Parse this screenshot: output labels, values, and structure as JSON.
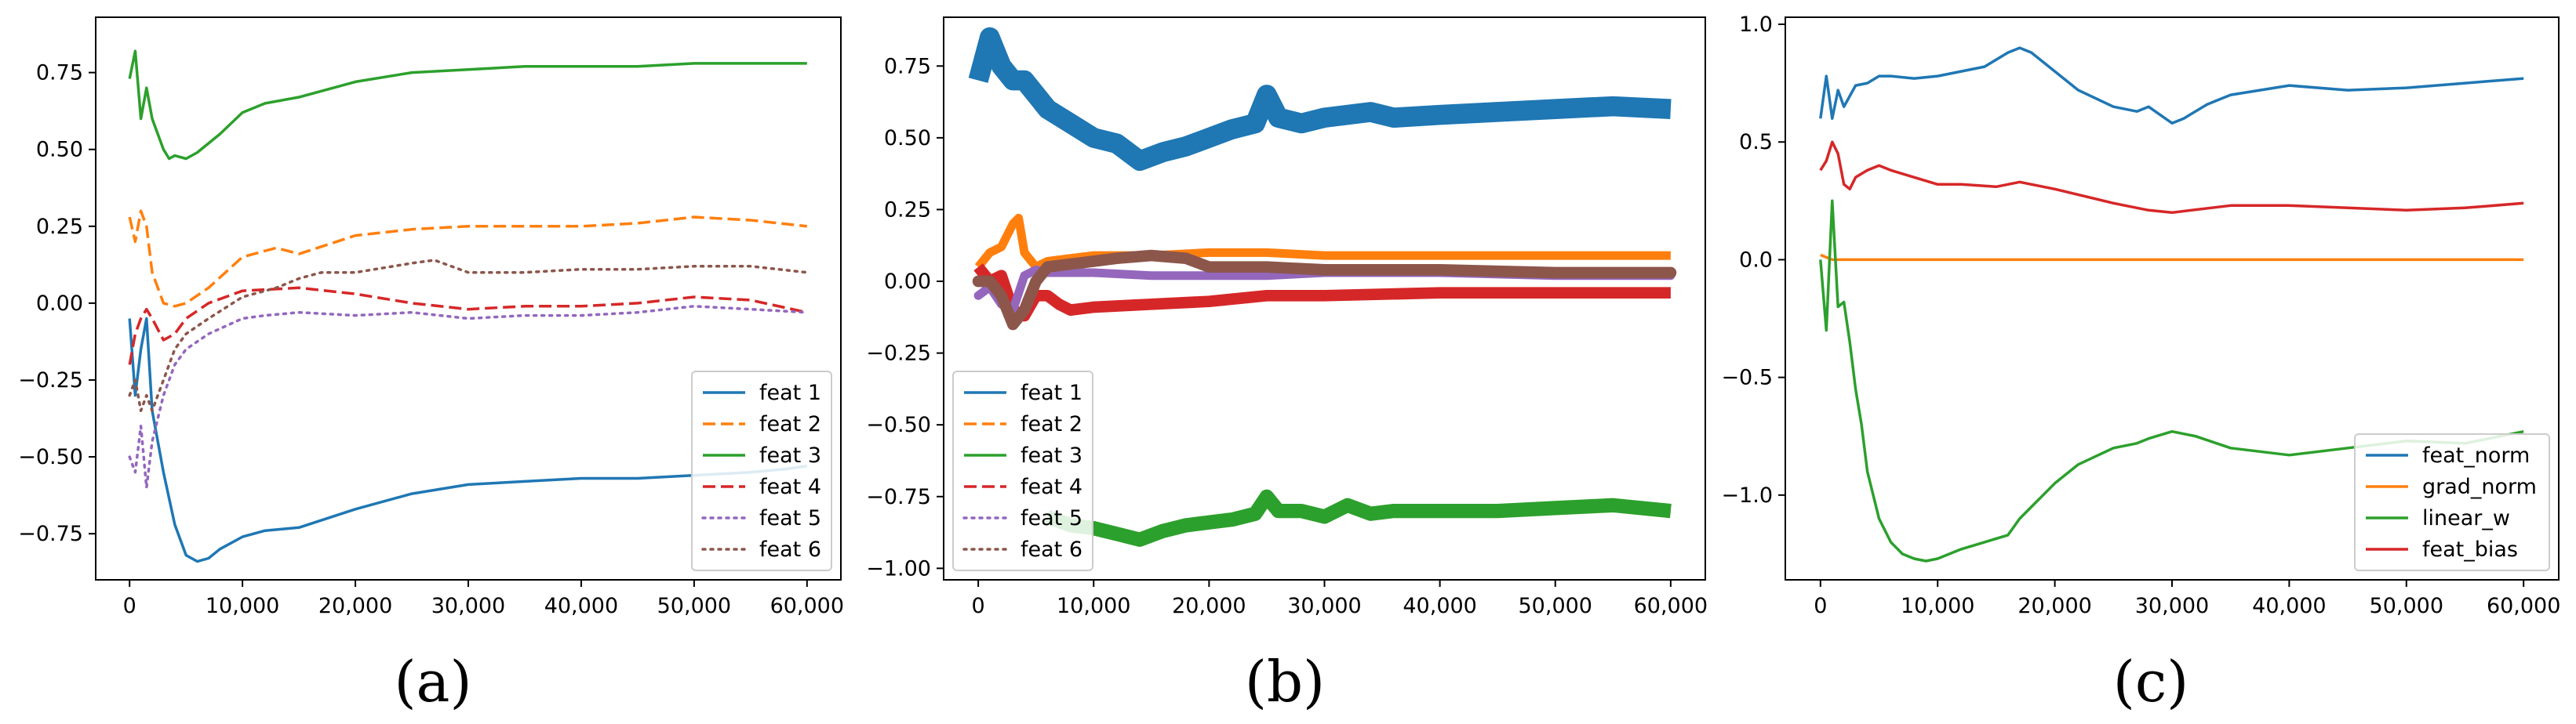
{
  "chart_data": [
    {
      "type": "line",
      "panel_label": "(a)",
      "xlabel": "",
      "ylabel": "",
      "xlim": [
        -3000,
        63000
      ],
      "ylim": [
        -0.9,
        0.93
      ],
      "xticks": [
        0,
        10000,
        20000,
        30000,
        40000,
        50000,
        60000
      ],
      "xtick_labels": [
        "0",
        "10,000",
        "20,000",
        "30,000",
        "40,000",
        "50,000",
        "60,000"
      ],
      "yticks": [
        -0.75,
        -0.5,
        -0.25,
        0.0,
        0.25,
        0.5,
        0.75
      ],
      "ytick_labels": [
        "−0.75",
        "−0.50",
        "−0.25",
        "0.00",
        "0.25",
        "0.50",
        "0.75"
      ],
      "legend_position": "bottom-right",
      "series": [
        {
          "name": "feat 1",
          "color": "#1f77b4",
          "dash": "solid",
          "x": [
            0,
            500,
            1000,
            1500,
            2000,
            3000,
            4000,
            5000,
            6000,
            7000,
            8000,
            10000,
            12000,
            15000,
            20000,
            25000,
            30000,
            35000,
            40000,
            45000,
            50000,
            55000,
            58000,
            60000
          ],
          "y": [
            -0.05,
            -0.3,
            -0.15,
            -0.05,
            -0.35,
            -0.55,
            -0.72,
            -0.82,
            -0.84,
            -0.83,
            -0.8,
            -0.76,
            -0.74,
            -0.73,
            -0.67,
            -0.62,
            -0.59,
            -0.58,
            -0.57,
            -0.57,
            -0.56,
            -0.55,
            -0.54,
            -0.53
          ]
        },
        {
          "name": "feat 2",
          "color": "#ff7f0e",
          "dash": "dashed",
          "x": [
            0,
            500,
            1000,
            1500,
            2000,
            3000,
            4000,
            5000,
            7000,
            10000,
            13000,
            15000,
            20000,
            25000,
            30000,
            35000,
            40000,
            45000,
            50000,
            55000,
            60000
          ],
          "y": [
            0.28,
            0.2,
            0.3,
            0.25,
            0.1,
            0.0,
            -0.01,
            0.0,
            0.05,
            0.15,
            0.18,
            0.16,
            0.22,
            0.24,
            0.25,
            0.25,
            0.25,
            0.26,
            0.28,
            0.27,
            0.25
          ]
        },
        {
          "name": "feat 3",
          "color": "#2ca02c",
          "dash": "solid",
          "x": [
            0,
            500,
            1000,
            1500,
            2000,
            2500,
            3000,
            3500,
            4000,
            5000,
            6000,
            8000,
            10000,
            12000,
            15000,
            20000,
            25000,
            30000,
            35000,
            40000,
            45000,
            50000,
            55000,
            60000
          ],
          "y": [
            0.73,
            0.82,
            0.6,
            0.7,
            0.6,
            0.55,
            0.5,
            0.47,
            0.48,
            0.47,
            0.49,
            0.55,
            0.62,
            0.65,
            0.67,
            0.72,
            0.75,
            0.76,
            0.77,
            0.77,
            0.77,
            0.78,
            0.78,
            0.78
          ]
        },
        {
          "name": "feat 4",
          "color": "#d62728",
          "dash": "dashed",
          "x": [
            0,
            500,
            1000,
            1500,
            2000,
            3000,
            4000,
            5000,
            7000,
            10000,
            15000,
            20000,
            25000,
            30000,
            35000,
            40000,
            45000,
            50000,
            55000,
            60000
          ],
          "y": [
            -0.2,
            -0.1,
            -0.05,
            -0.02,
            -0.05,
            -0.12,
            -0.1,
            -0.05,
            0.0,
            0.04,
            0.05,
            0.03,
            0.0,
            -0.02,
            -0.01,
            -0.01,
            0.0,
            0.02,
            0.01,
            -0.03
          ]
        },
        {
          "name": "feat 5",
          "color": "#9467bd",
          "dash": "dotted",
          "x": [
            0,
            500,
            1000,
            1500,
            2000,
            3000,
            4000,
            5000,
            7000,
            10000,
            12000,
            15000,
            20000,
            25000,
            30000,
            35000,
            40000,
            45000,
            50000,
            55000,
            60000
          ],
          "y": [
            -0.5,
            -0.55,
            -0.4,
            -0.6,
            -0.45,
            -0.3,
            -0.2,
            -0.15,
            -0.1,
            -0.05,
            -0.04,
            -0.03,
            -0.04,
            -0.03,
            -0.05,
            -0.04,
            -0.04,
            -0.03,
            -0.01,
            -0.02,
            -0.03
          ]
        },
        {
          "name": "feat 6",
          "color": "#8c564b",
          "dash": "dotted",
          "x": [
            0,
            500,
            1000,
            1500,
            2000,
            3000,
            4000,
            5000,
            7000,
            10000,
            13000,
            15000,
            17000,
            20000,
            25000,
            27000,
            30000,
            35000,
            40000,
            45000,
            50000,
            55000,
            60000
          ],
          "y": [
            -0.3,
            -0.25,
            -0.35,
            -0.3,
            -0.35,
            -0.25,
            -0.15,
            -0.1,
            -0.05,
            0.02,
            0.05,
            0.08,
            0.1,
            0.1,
            0.13,
            0.14,
            0.1,
            0.1,
            0.11,
            0.11,
            0.12,
            0.12,
            0.1
          ]
        }
      ]
    },
    {
      "type": "line",
      "panel_label": "(b)",
      "xlabel": "",
      "ylabel": "",
      "xlim": [
        -3000,
        63000
      ],
      "ylim": [
        -1.04,
        0.92
      ],
      "xticks": [
        0,
        10000,
        20000,
        30000,
        40000,
        50000,
        60000
      ],
      "xtick_labels": [
        "0",
        "10,000",
        "20,000",
        "30,000",
        "40,000",
        "50,000",
        "60,000"
      ],
      "yticks": [
        -1.0,
        -0.75,
        -0.5,
        -0.25,
        0.0,
        0.25,
        0.5,
        0.75
      ],
      "ytick_labels": [
        "−1.00",
        "−0.75",
        "−0.50",
        "−0.25",
        "0.00",
        "0.25",
        "0.50",
        "0.75"
      ],
      "legend_position": "bottom-left",
      "series": [
        {
          "name": "feat 1",
          "color": "#1f77b4",
          "dash": "solid",
          "band": 0.07,
          "x": [
            0,
            1000,
            2000,
            3000,
            4000,
            5000,
            6000,
            8000,
            10000,
            12000,
            14000,
            16000,
            18000,
            20000,
            22000,
            24000,
            25000,
            26000,
            28000,
            30000,
            32000,
            34000,
            36000,
            40000,
            45000,
            50000,
            55000,
            60000
          ],
          "y": [
            0.7,
            0.85,
            0.75,
            0.7,
            0.7,
            0.65,
            0.6,
            0.55,
            0.5,
            0.48,
            0.42,
            0.45,
            0.47,
            0.5,
            0.53,
            0.55,
            0.65,
            0.57,
            0.55,
            0.57,
            0.58,
            0.59,
            0.57,
            0.58,
            0.59,
            0.6,
            0.61,
            0.6
          ]
        },
        {
          "name": "feat 2",
          "color": "#ff7f0e",
          "dash": "dashed",
          "band": 0.03,
          "x": [
            0,
            1000,
            2000,
            3000,
            3500,
            4000,
            5000,
            6000,
            8000,
            10000,
            15000,
            20000,
            25000,
            30000,
            40000,
            50000,
            60000
          ],
          "y": [
            0.05,
            0.1,
            0.12,
            0.2,
            0.22,
            0.1,
            0.05,
            0.07,
            0.08,
            0.09,
            0.09,
            0.1,
            0.1,
            0.09,
            0.09,
            0.09,
            0.09
          ]
        },
        {
          "name": "feat 3",
          "color": "#2ca02c",
          "dash": "solid",
          "band": 0.05,
          "x": [
            6000,
            8000,
            10000,
            12000,
            14000,
            16000,
            18000,
            20000,
            22000,
            24000,
            25000,
            26000,
            28000,
            30000,
            32000,
            34000,
            36000,
            40000,
            45000,
            50000,
            55000,
            60000
          ],
          "y": [
            -0.82,
            -0.85,
            -0.86,
            -0.88,
            -0.9,
            -0.87,
            -0.85,
            -0.84,
            -0.83,
            -0.81,
            -0.75,
            -0.8,
            -0.8,
            -0.82,
            -0.78,
            -0.81,
            -0.8,
            -0.8,
            -0.8,
            -0.79,
            -0.78,
            -0.8
          ]
        },
        {
          "name": "feat 4",
          "color": "#d62728",
          "dash": "dashed",
          "band": 0.04,
          "x": [
            0,
            1000,
            2000,
            3000,
            4000,
            5000,
            6000,
            7000,
            8000,
            10000,
            15000,
            20000,
            25000,
            30000,
            40000,
            50000,
            60000
          ],
          "y": [
            0.05,
            0.0,
            0.02,
            -0.1,
            -0.12,
            -0.05,
            -0.05,
            -0.08,
            -0.1,
            -0.09,
            -0.08,
            -0.07,
            -0.05,
            -0.05,
            -0.04,
            -0.04,
            -0.04
          ]
        },
        {
          "name": "feat 5",
          "color": "#9467bd",
          "dash": "dotted",
          "band": 0.03,
          "x": [
            0,
            1000,
            2000,
            3000,
            4000,
            5000,
            6000,
            8000,
            10000,
            15000,
            20000,
            25000,
            30000,
            40000,
            50000,
            60000
          ],
          "y": [
            -0.05,
            -0.02,
            -0.08,
            -0.1,
            0.02,
            0.04,
            0.03,
            0.03,
            0.03,
            0.02,
            0.02,
            0.02,
            0.03,
            0.03,
            0.02,
            0.02
          ]
        },
        {
          "name": "feat 6",
          "color": "#8c564b",
          "dash": "dotted",
          "band": 0.04,
          "x": [
            0,
            1000,
            2000,
            3000,
            4000,
            5000,
            6000,
            8000,
            10000,
            12000,
            15000,
            18000,
            20000,
            25000,
            30000,
            40000,
            50000,
            60000
          ],
          "y": [
            0.0,
            0.0,
            -0.05,
            -0.15,
            -0.1,
            0.0,
            0.05,
            0.06,
            0.07,
            0.08,
            0.09,
            0.08,
            0.05,
            0.05,
            0.04,
            0.04,
            0.03,
            0.03
          ]
        }
      ]
    },
    {
      "type": "line",
      "panel_label": "(c)",
      "xlabel": "",
      "ylabel": "",
      "xlim": [
        -3000,
        63000
      ],
      "ylim": [
        -1.36,
        1.03
      ],
      "xticks": [
        0,
        10000,
        20000,
        30000,
        40000,
        50000,
        60000
      ],
      "xtick_labels": [
        "0",
        "10,000",
        "20,000",
        "30,000",
        "40,000",
        "50,000",
        "60,000"
      ],
      "yticks": [
        -1.0,
        -0.5,
        0.0,
        0.5,
        1.0
      ],
      "ytick_labels": [
        "−1.0",
        "−0.5",
        "0.0",
        "0.5",
        "1.0"
      ],
      "legend_position": "bottom-right",
      "series": [
        {
          "name": "feat_norm",
          "color": "#1f77b4",
          "dash": "solid",
          "x": [
            0,
            500,
            1000,
            1500,
            2000,
            3000,
            4000,
            5000,
            6000,
            8000,
            10000,
            12000,
            14000,
            16000,
            17000,
            18000,
            20000,
            22000,
            25000,
            27000,
            28000,
            30000,
            31000,
            33000,
            35000,
            40000,
            45000,
            50000,
            55000,
            60000
          ],
          "y": [
            0.6,
            0.78,
            0.6,
            0.72,
            0.65,
            0.74,
            0.75,
            0.78,
            0.78,
            0.77,
            0.78,
            0.8,
            0.82,
            0.88,
            0.9,
            0.88,
            0.8,
            0.72,
            0.65,
            0.63,
            0.65,
            0.58,
            0.6,
            0.66,
            0.7,
            0.74,
            0.72,
            0.73,
            0.75,
            0.77
          ]
        },
        {
          "name": "grad_norm",
          "color": "#ff7f0e",
          "dash": "solid",
          "x": [
            0,
            500,
            1000,
            60000
          ],
          "y": [
            0.02,
            0.01,
            0.0,
            0.0
          ]
        },
        {
          "name": "linear_w",
          "color": "#2ca02c",
          "dash": "solid",
          "x": [
            0,
            500,
            1000,
            1500,
            2000,
            2500,
            3000,
            3500,
            4000,
            5000,
            6000,
            7000,
            8000,
            9000,
            10000,
            12000,
            14000,
            16000,
            17000,
            18000,
            20000,
            22000,
            25000,
            27000,
            28000,
            30000,
            32000,
            35000,
            40000,
            45000,
            50000,
            55000,
            60000
          ],
          "y": [
            0.0,
            -0.3,
            0.25,
            -0.2,
            -0.18,
            -0.35,
            -0.55,
            -0.7,
            -0.9,
            -1.1,
            -1.2,
            -1.25,
            -1.27,
            -1.28,
            -1.27,
            -1.23,
            -1.2,
            -1.17,
            -1.1,
            -1.05,
            -0.95,
            -0.87,
            -0.8,
            -0.78,
            -0.76,
            -0.73,
            -0.75,
            -0.8,
            -0.83,
            -0.8,
            -0.77,
            -0.78,
            -0.73
          ]
        },
        {
          "name": "feat_bias",
          "color": "#d62728",
          "dash": "solid",
          "x": [
            0,
            500,
            1000,
            1500,
            2000,
            2500,
            3000,
            4000,
            5000,
            6000,
            8000,
            10000,
            12000,
            15000,
            17000,
            20000,
            25000,
            28000,
            30000,
            35000,
            40000,
            45000,
            50000,
            55000,
            60000
          ],
          "y": [
            0.38,
            0.42,
            0.5,
            0.45,
            0.32,
            0.3,
            0.35,
            0.38,
            0.4,
            0.38,
            0.35,
            0.32,
            0.32,
            0.31,
            0.33,
            0.3,
            0.24,
            0.21,
            0.2,
            0.23,
            0.23,
            0.22,
            0.21,
            0.22,
            0.24
          ]
        }
      ]
    }
  ]
}
